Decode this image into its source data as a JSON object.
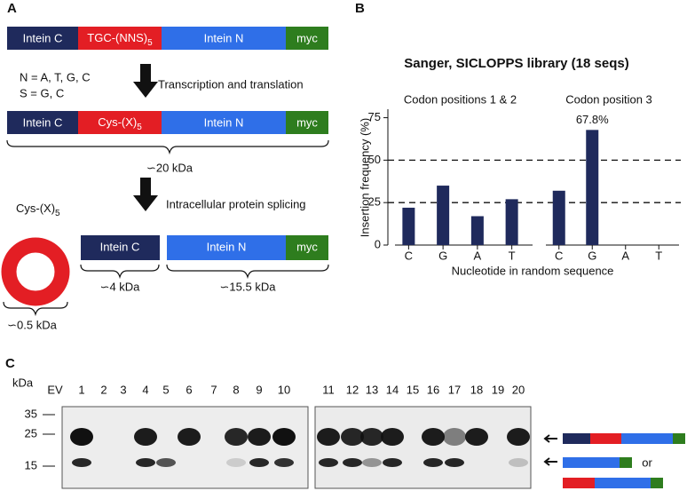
{
  "panel_a": {
    "label": "A",
    "construct_dna": {
      "intein_c": "Intein C",
      "insert": "TGC-(NNS)",
      "insert_sub": "5",
      "intein_n": "Intein N",
      "tag": "myc"
    },
    "notes": [
      "N = A, T, G, C",
      "S = G, C"
    ],
    "step_1": "Transcription and translation",
    "construct_protein": {
      "intein_c": "Intein C",
      "insert": "Cys-(X)",
      "insert_sub": "5",
      "intein_n": "Intein N",
      "tag": "myc"
    },
    "mass_full": "∽20 kDa",
    "step_2": "Intracellular protein splicing",
    "cyclic_peptide": "Cys-(X)",
    "cyclic_peptide_sub": "5",
    "product_intein_c": "Intein C",
    "product_intein_n": "Intein N",
    "product_tag": "myc",
    "mass_cyclic": "∽0.5 kDa",
    "mass_intein_c": "∽4 kDa",
    "mass_intein_n": "∽15.5 kDa"
  },
  "chart_data": {
    "type": "bar",
    "panel_label": "B",
    "title": "Sanger, SICLOPPS library (18 seqs)",
    "ylabel": "Insertion frequency (%)",
    "xlabel": "Nucleotide in random sequence",
    "color": "#1f2a5c",
    "ylim": [
      0,
      80
    ],
    "yticks": [
      0,
      25,
      50,
      75
    ],
    "reference_lines": [
      25,
      50
    ],
    "groups": [
      {
        "name": "Codon positions 1 & 2",
        "categories": [
          "C",
          "G",
          "A",
          "T"
        ],
        "values": [
          22,
          35,
          17,
          27
        ]
      },
      {
        "name": "Codon position 3",
        "categories": [
          "C",
          "G",
          "A",
          "T"
        ],
        "values": [
          32,
          67.8,
          0,
          0
        ],
        "value_labels": [
          null,
          "67.8%",
          null,
          null
        ]
      }
    ]
  },
  "panel_c": {
    "label": "C",
    "unit": "kDa",
    "markers": [
      "35",
      "25",
      "15"
    ],
    "lanes": [
      {
        "label": "EV",
        "color": "#e8141b"
      },
      {
        "label": "1",
        "color": "#000000"
      },
      {
        "label": "2",
        "color": "#e8141b"
      },
      {
        "label": "3",
        "color": "#e8141b"
      },
      {
        "label": "4",
        "color": "#000000"
      },
      {
        "label": "5",
        "color": "#000000"
      },
      {
        "label": "6",
        "color": "#000000"
      },
      {
        "label": "7",
        "color": "#e8141b"
      },
      {
        "label": "8",
        "color": "#000000"
      },
      {
        "label": "9",
        "color": "#000000"
      },
      {
        "label": "10",
        "color": "#000000"
      },
      {
        "label": "11",
        "color": "#000000"
      },
      {
        "label": "12",
        "color": "#000000"
      },
      {
        "label": "13",
        "color": "#000000"
      },
      {
        "label": "14",
        "color": "#000000"
      },
      {
        "label": "15",
        "color": "#e8141b"
      },
      {
        "label": "16",
        "color": "#000000"
      },
      {
        "label": "17",
        "color": "#000000"
      },
      {
        "label": "18",
        "color": "#000000"
      },
      {
        "label": "19",
        "color": "#e8141b"
      },
      {
        "label": "20",
        "color": "#000000"
      }
    ],
    "or": "or"
  }
}
